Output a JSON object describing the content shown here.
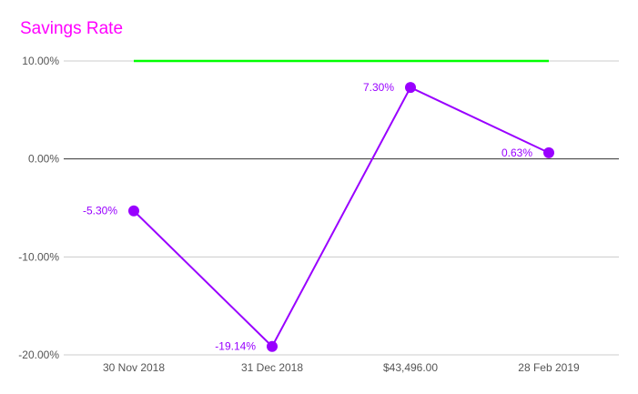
{
  "chart_data": {
    "type": "line",
    "title": "Savings Rate",
    "categories": [
      "30 Nov 2018",
      "31 Dec 2018",
      "$43,496.00",
      "28 Feb 2019"
    ],
    "series": [
      {
        "values": [
          -5.3,
          -19.14,
          7.3,
          0.63
        ],
        "labels": [
          "-5.30%",
          "-19.14%",
          "7.30%",
          "0.63%"
        ],
        "color": "#9900ff"
      },
      {
        "values": [
          10.0,
          10.0,
          10.0,
          10.0
        ],
        "color": "#00ff00"
      }
    ],
    "ylim": [
      -20,
      10
    ],
    "yticks": [
      10,
      0,
      -10,
      -20
    ],
    "ytick_labels": [
      "10.00%",
      "0.00%",
      "-10.00%",
      "-20.00%"
    ],
    "grid": true,
    "colors": {
      "title": "#ff00ff",
      "axis_zero": "#333333",
      "gridline": "#cccccc",
      "tick_text": "#555555"
    }
  }
}
